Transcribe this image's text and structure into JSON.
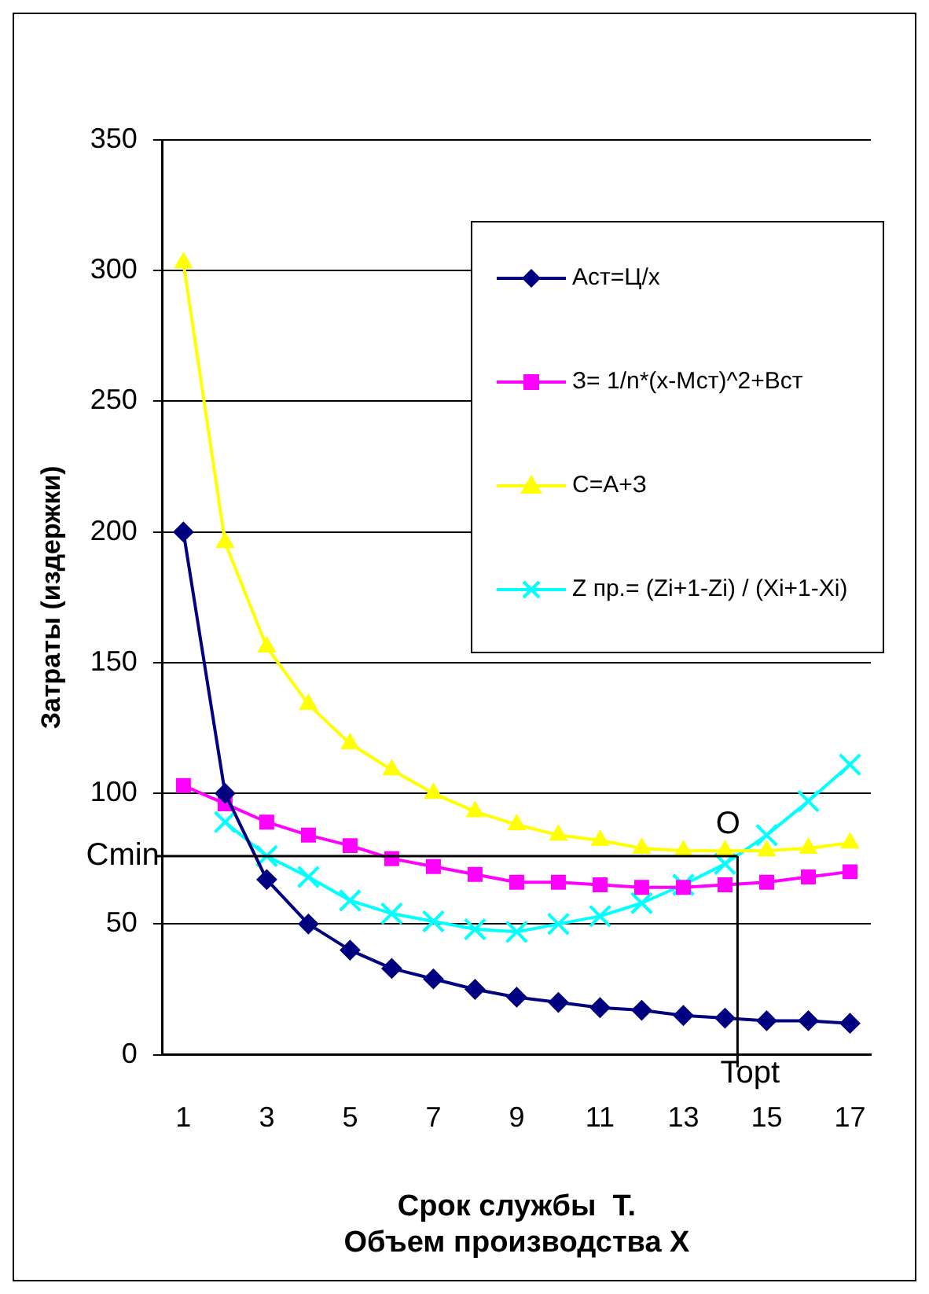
{
  "chart_data": {
    "type": "line",
    "xlabel": "Срок службы  Т.\nОбъем производства Х",
    "ylabel": "Затраты (издержки)",
    "x": [
      1,
      2,
      3,
      4,
      5,
      6,
      7,
      8,
      9,
      10,
      11,
      12,
      13,
      14,
      15,
      16,
      17
    ],
    "xlim": [
      0.5,
      17.5
    ],
    "xticks": [
      1,
      3,
      5,
      7,
      9,
      11,
      13,
      15,
      17
    ],
    "ylim": [
      0,
      350
    ],
    "yticks": [
      0,
      50,
      100,
      150,
      200,
      250,
      300,
      350
    ],
    "grid": "y",
    "legend": "top right",
    "series": [
      {
        "name": "Аст=Ц/х",
        "color": "#000080",
        "marker": "diamond",
        "values": [
          200,
          100,
          67,
          50,
          40,
          33,
          29,
          25,
          22,
          20,
          18,
          17,
          15,
          14,
          13,
          13,
          12
        ]
      },
      {
        "name": "З= 1/n*(x-Мст)^2+Вст",
        "color": "#ff00ff",
        "marker": "square",
        "values": [
          103,
          96,
          89,
          84,
          80,
          75,
          72,
          69,
          66,
          66,
          65,
          64,
          64,
          65,
          66,
          68,
          70
        ]
      },
      {
        "name": "С=А+З",
        "color": "#ffff00",
        "marker": "triangle",
        "values": [
          303,
          196,
          156,
          134,
          119,
          109,
          100,
          93,
          88,
          84,
          82,
          79,
          78,
          78,
          78,
          79,
          81
        ]
      },
      {
        "name": "Z пр.= (Zi+1-Zi) / (Xi+1-Xi)",
        "color": "#00ffff",
        "marker": "cross",
        "values": [
          null,
          89,
          76,
          68,
          59,
          54,
          51,
          48,
          47,
          50,
          53,
          58,
          65,
          73,
          84,
          97,
          111
        ]
      }
    ],
    "ref_lines": [
      {
        "axis": "y",
        "value": 76,
        "label": "Cmin",
        "color": "#000000"
      },
      {
        "axis": "x",
        "value": 14.3,
        "label": "Topt",
        "color": "#000000"
      }
    ],
    "annotations": [
      "O"
    ]
  }
}
